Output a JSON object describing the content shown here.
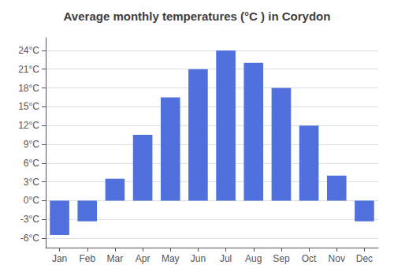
{
  "chart_data": {
    "type": "bar",
    "title": "Average monthly temperatures (°C ) in Corydon",
    "categories": [
      "Jan",
      "Feb",
      "Mar",
      "Apr",
      "May",
      "Jun",
      "Jul",
      "Aug",
      "Sep",
      "Oct",
      "Nov",
      "Dec"
    ],
    "values": [
      -5.5,
      -3.3,
      3.5,
      10.5,
      16.5,
      21.0,
      24.0,
      22.0,
      18.0,
      12.0,
      4.0,
      -3.3
    ],
    "ylim": [
      -7.5,
      26
    ],
    "yticks": [
      {
        "value": -6,
        "label": "-6°C"
      },
      {
        "value": -3,
        "label": "-3°C"
      },
      {
        "value": 0,
        "label": "0°C"
      },
      {
        "value": 3,
        "label": "3°C"
      },
      {
        "value": 6,
        "label": "6°C"
      },
      {
        "value": 9,
        "label": "9°C"
      },
      {
        "value": 12,
        "label": "12°C"
      },
      {
        "value": 15,
        "label": "15°C"
      },
      {
        "value": 18,
        "label": "18°C"
      },
      {
        "value": 21,
        "label": "21°C"
      },
      {
        "value": 24,
        "label": "24°C"
      }
    ],
    "grid": true
  }
}
